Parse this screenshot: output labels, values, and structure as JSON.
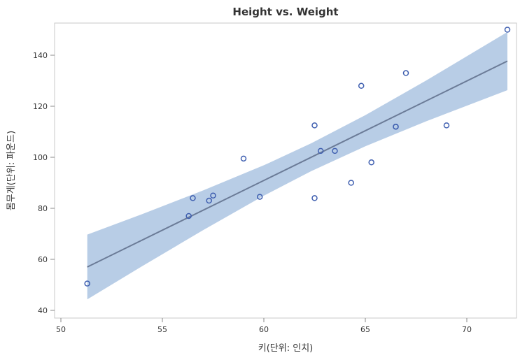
{
  "chart_data": {
    "type": "scatter",
    "title": "Height vs. Weight",
    "xlabel": "키(단위: 인치)",
    "ylabel": "몸무게(단위: 파운드)",
    "xlim": [
      49.8,
      72.6
    ],
    "ylim": [
      37,
      153
    ],
    "xticks": [
      50,
      55,
      60,
      65,
      70
    ],
    "yticks": [
      40,
      60,
      80,
      100,
      120,
      140
    ],
    "grid": false,
    "points": [
      {
        "x": 69,
        "y": 112.5
      },
      {
        "x": 56.5,
        "y": 84
      },
      {
        "x": 65.3,
        "y": 98
      },
      {
        "x": 62.8,
        "y": 102.5
      },
      {
        "x": 63.5,
        "y": 102.5
      },
      {
        "x": 57.3,
        "y": 83
      },
      {
        "x": 59.8,
        "y": 84.5
      },
      {
        "x": 62.5,
        "y": 112.5
      },
      {
        "x": 62.5,
        "y": 84
      },
      {
        "x": 59,
        "y": 99.5
      },
      {
        "x": 51.3,
        "y": 50.5
      },
      {
        "x": 64.3,
        "y": 90
      },
      {
        "x": 56.3,
        "y": 77
      },
      {
        "x": 66.5,
        "y": 112
      },
      {
        "x": 72,
        "y": 150
      },
      {
        "x": 64.8,
        "y": 128
      },
      {
        "x": 67,
        "y": 133
      },
      {
        "x": 57.5,
        "y": 85
      },
      {
        "x": 66.5,
        "y": 112
      }
    ],
    "fit_line": {
      "x": [
        51.3,
        72
      ],
      "y": [
        57.0,
        137.7
      ]
    },
    "confidence_band": {
      "x": [
        51.3,
        54,
        57,
        60,
        62.34,
        65,
        68,
        72
      ],
      "lower": [
        44.3,
        57.3,
        71.4,
        84.95,
        94.6,
        104.3,
        114.1,
        126.3
      ],
      "upper": [
        69.7,
        77.7,
        87.0,
        96.87,
        105.5,
        116.5,
        130.1,
        149.1
      ]
    },
    "colors": {
      "marker": "#3f5fb0",
      "fit": "#6b7b97",
      "band": "#b8cde6",
      "frame": "#c8c8c8"
    }
  }
}
